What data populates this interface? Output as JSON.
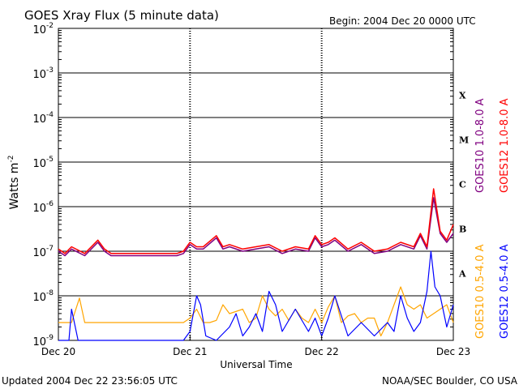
{
  "chart_data": {
    "type": "line",
    "title": "GOES Xray Flux (5 minute data)",
    "begin": "Begin:  2004 Dec 20 0000 UTC",
    "xlabel": "Universal Time",
    "ylabel_base": "Watts m",
    "ylabel_exp": "-2",
    "x_range_days": [
      0,
      3
    ],
    "x_ticks": [
      {
        "day": 0,
        "label": "Dec 20"
      },
      {
        "day": 1,
        "label": "Dec 21"
      },
      {
        "day": 2,
        "label": "Dec 22"
      },
      {
        "day": 3,
        "label": "Dec 23"
      }
    ],
    "y_scale": "log",
    "ylim_exp": [
      -9,
      -2
    ],
    "y_ticks": [
      {
        "base": "10",
        "exp": "-2"
      },
      {
        "base": "10",
        "exp": "-3"
      },
      {
        "base": "10",
        "exp": "-4"
      },
      {
        "base": "10",
        "exp": "-5"
      },
      {
        "base": "10",
        "exp": "-6"
      },
      {
        "base": "10",
        "exp": "-7"
      },
      {
        "base": "10",
        "exp": "-8"
      },
      {
        "base": "10",
        "exp": "-9"
      }
    ],
    "flare_classes": [
      {
        "label": "X",
        "exp": -4
      },
      {
        "label": "M",
        "exp": -5
      },
      {
        "label": "C",
        "exp": -6
      },
      {
        "label": "B",
        "exp": -7
      },
      {
        "label": "A",
        "exp": -8
      }
    ],
    "series": [
      {
        "name": "GOES10 0.5-4.0 A",
        "color": "#ffa500",
        "day": [
          0,
          0.1,
          0.16,
          0.2,
          0.3,
          0.36,
          0.4,
          0.5,
          0.58,
          0.6,
          0.7,
          0.78,
          0.8,
          0.9,
          0.95,
          1.0,
          1.05,
          1.1,
          1.15,
          1.2,
          1.25,
          1.3,
          1.4,
          1.45,
          1.5,
          1.55,
          1.6,
          1.65,
          1.7,
          1.75,
          1.8,
          1.85,
          1.9,
          1.95,
          2.0,
          2.05,
          2.1,
          2.15,
          2.2,
          2.25,
          2.3,
          2.35,
          2.4,
          2.45,
          2.5,
          2.55,
          2.6,
          2.65,
          2.7,
          2.75,
          2.8,
          2.85,
          2.9,
          2.95,
          3.0
        ],
        "log10": [
          -8.6,
          -8.6,
          -8.05,
          -8.6,
          -8.6,
          -8.6,
          -8.6,
          -8.6,
          -8.6,
          -8.6,
          -8.6,
          -8.6,
          -8.6,
          -8.6,
          -8.6,
          -8.5,
          -8.3,
          -8.6,
          -8.6,
          -8.55,
          -8.2,
          -8.4,
          -8.3,
          -8.6,
          -8.5,
          -8.0,
          -8.3,
          -8.45,
          -8.3,
          -8.55,
          -8.3,
          -8.5,
          -8.6,
          -8.3,
          -8.6,
          -8.25,
          -8.0,
          -8.6,
          -8.45,
          -8.4,
          -8.6,
          -8.5,
          -8.5,
          -8.9,
          -8.6,
          -8.2,
          -7.8,
          -8.2,
          -8.3,
          -8.2,
          -8.5,
          -8.4,
          -8.3,
          -8.2,
          -8.6
        ]
      },
      {
        "name": "GOES12 0.5-4.0 A",
        "color": "#0000ff",
        "day": [
          0,
          0.08,
          0.1,
          0.15,
          0.2,
          0.3,
          0.4,
          0.5,
          0.55,
          0.6,
          0.7,
          0.8,
          0.9,
          0.95,
          1.0,
          1.05,
          1.08,
          1.12,
          1.2,
          1.3,
          1.35,
          1.4,
          1.45,
          1.5,
          1.55,
          1.6,
          1.65,
          1.7,
          1.8,
          1.9,
          1.95,
          2.0,
          2.05,
          2.1,
          2.2,
          2.3,
          2.4,
          2.5,
          2.55,
          2.6,
          2.65,
          2.7,
          2.75,
          2.8,
          2.83,
          2.86,
          2.9,
          2.95,
          3.0
        ],
        "log10": [
          -9.0,
          -9.0,
          -8.3,
          -9.0,
          -9.0,
          -9.0,
          -9.0,
          -9.0,
          -9.0,
          -9.0,
          -9.0,
          -9.0,
          -9.0,
          -9.0,
          -8.8,
          -8.0,
          -8.2,
          -8.9,
          -9.0,
          -8.7,
          -8.4,
          -8.9,
          -8.7,
          -8.4,
          -8.8,
          -7.9,
          -8.2,
          -8.8,
          -8.3,
          -8.8,
          -8.5,
          -8.9,
          -8.5,
          -8.0,
          -8.9,
          -8.6,
          -8.9,
          -8.6,
          -8.8,
          -8.0,
          -8.5,
          -8.8,
          -8.6,
          -7.9,
          -7.0,
          -7.8,
          -8.0,
          -8.7,
          -8.2
        ]
      },
      {
        "name": "GOES10 1.0-8.0 A",
        "color": "#800080",
        "day": [
          0,
          0.05,
          0.1,
          0.2,
          0.3,
          0.35,
          0.4,
          0.5,
          0.6,
          0.7,
          0.8,
          0.9,
          0.95,
          1.0,
          1.05,
          1.1,
          1.2,
          1.25,
          1.3,
          1.4,
          1.5,
          1.6,
          1.7,
          1.8,
          1.9,
          1.95,
          2.0,
          2.05,
          2.1,
          2.2,
          2.3,
          2.4,
          2.5,
          2.6,
          2.7,
          2.75,
          2.8,
          2.85,
          2.9,
          2.95,
          3.0
        ],
        "log10": [
          -7.0,
          -7.1,
          -6.95,
          -7.1,
          -6.8,
          -7.0,
          -7.1,
          -7.1,
          -7.1,
          -7.1,
          -7.1,
          -7.1,
          -7.05,
          -6.85,
          -6.95,
          -6.95,
          -6.7,
          -6.95,
          -6.9,
          -7.0,
          -6.95,
          -6.9,
          -7.05,
          -6.95,
          -7.0,
          -6.7,
          -6.9,
          -6.85,
          -6.75,
          -7.0,
          -6.85,
          -7.05,
          -7.0,
          -6.85,
          -6.95,
          -6.65,
          -6.95,
          -5.8,
          -6.6,
          -6.8,
          -6.6
        ]
      },
      {
        "name": "GOES12 1.0-8.0 A",
        "color": "#ff0000",
        "day": [
          0,
          0.05,
          0.1,
          0.2,
          0.3,
          0.35,
          0.4,
          0.5,
          0.6,
          0.7,
          0.8,
          0.9,
          0.95,
          1.0,
          1.05,
          1.1,
          1.2,
          1.25,
          1.3,
          1.4,
          1.5,
          1.6,
          1.7,
          1.8,
          1.9,
          1.95,
          2.0,
          2.05,
          2.1,
          2.2,
          2.3,
          2.4,
          2.5,
          2.6,
          2.7,
          2.75,
          2.8,
          2.85,
          2.9,
          2.95,
          3.0
        ],
        "log10": [
          -6.95,
          -7.05,
          -6.9,
          -7.05,
          -6.75,
          -6.95,
          -7.05,
          -7.05,
          -7.05,
          -7.05,
          -7.05,
          -7.05,
          -7.0,
          -6.8,
          -6.9,
          -6.9,
          -6.65,
          -6.9,
          -6.85,
          -6.95,
          -6.9,
          -6.85,
          -7.0,
          -6.9,
          -6.95,
          -6.65,
          -6.85,
          -6.8,
          -6.7,
          -6.95,
          -6.8,
          -7.0,
          -6.95,
          -6.8,
          -6.9,
          -6.6,
          -6.9,
          -5.6,
          -6.55,
          -6.75,
          -6.4
        ]
      }
    ]
  },
  "footer": {
    "updated": "Updated 2004 Dec 22 23:56:05 UTC",
    "credit": "NOAA/SEC Boulder, CO USA"
  }
}
